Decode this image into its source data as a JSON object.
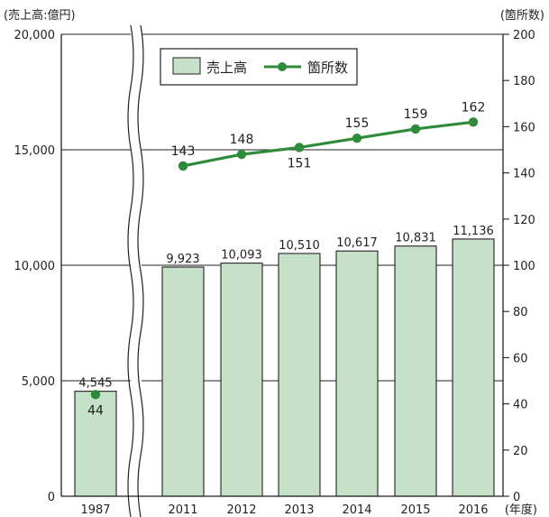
{
  "chart_data": {
    "type": "bar+line",
    "categories": [
      "1987",
      "2011",
      "2012",
      "2013",
      "2014",
      "2015",
      "2016"
    ],
    "x_unit_label": "(年度)",
    "series": [
      {
        "name": "売上高",
        "type": "bar",
        "axis": "left",
        "values": [
          4545,
          9923,
          10093,
          10510,
          10617,
          10831,
          11136
        ],
        "value_labels": [
          "4,545",
          "9,923",
          "10,093",
          "10,510",
          "10,617",
          "10,831",
          "11,136"
        ]
      },
      {
        "name": "箇所数",
        "type": "line",
        "axis": "right",
        "values": [
          44,
          143,
          148,
          151,
          155,
          159,
          162
        ],
        "value_labels": [
          "44",
          "143",
          "148",
          "151",
          "155",
          "159",
          "162"
        ]
      }
    ],
    "left_axis": {
      "label": "(売上高:億円)",
      "ylim": [
        0,
        20000
      ],
      "ticks": [
        0,
        5000,
        10000,
        15000,
        20000
      ],
      "tick_labels": [
        "0",
        "5,000",
        "10,000",
        "15,000",
        "20,000"
      ]
    },
    "right_axis": {
      "label": "(箇所数)",
      "ylim": [
        0,
        200
      ],
      "ticks": [
        0,
        20,
        40,
        60,
        80,
        100,
        120,
        140,
        160,
        180,
        200
      ],
      "tick_labels": [
        "0",
        "20",
        "40",
        "60",
        "80",
        "100",
        "120",
        "140",
        "160",
        "180",
        "200"
      ]
    },
    "axis_break_between": [
      "1987",
      "2011"
    ],
    "legend": {
      "placement": "top-center",
      "bar_label": "売上高",
      "line_label": "箇所数"
    },
    "gridlines": "horizontal at left-axis major ticks",
    "colors": {
      "bar_fill": "#c5e2c8",
      "bar_stroke": "#231f20",
      "line": "#2e8b3a",
      "text": "#231f20"
    }
  }
}
